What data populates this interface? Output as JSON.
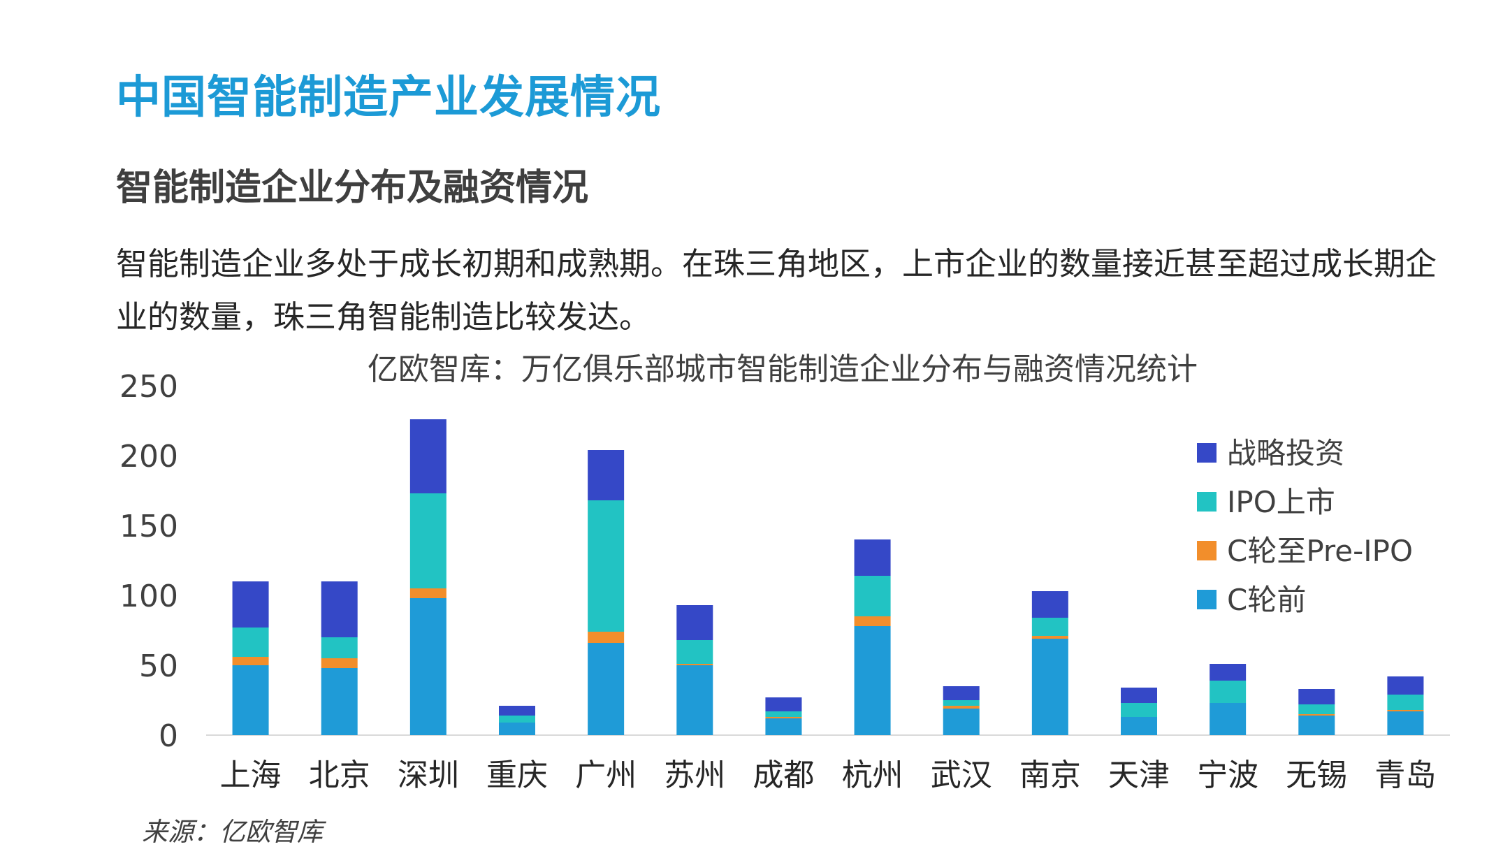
{
  "header": {
    "title": "中国智能制造产业发展情况",
    "subtitle": "智能制造企业分布及融资情况",
    "description": "智能制造企业多处于成长初期和成熟期。在珠三角地区，上市企业的数量接近甚至超过成长期企业的数量，珠三角智能制造比较发达。"
  },
  "source": "来源：亿欧智库",
  "chart_data": {
    "type": "bar",
    "stacked": true,
    "title": "亿欧智库：万亿俱乐部城市智能制造企业分布与融资情况统计",
    "xlabel": "",
    "ylabel": "",
    "ylim": [
      0,
      250
    ],
    "yticks": [
      0,
      50,
      100,
      150,
      200,
      250
    ],
    "grid": false,
    "legend_position": "right",
    "categories": [
      "上海",
      "北京",
      "深圳",
      "重庆",
      "广州",
      "苏州",
      "成都",
      "杭州",
      "武汉",
      "南京",
      "天津",
      "宁波",
      "无锡",
      "青岛"
    ],
    "series": [
      {
        "name": "C轮前",
        "color": "#1f9bd7",
        "values": [
          50,
          48,
          98,
          9,
          66,
          50,
          12,
          78,
          19,
          69,
          13,
          23,
          14,
          17
        ]
      },
      {
        "name": "C轮至Pre-IPO",
        "color": "#f28e2b",
        "values": [
          6,
          7,
          7,
          0,
          8,
          1,
          1,
          7,
          2,
          2,
          0,
          0,
          1,
          1
        ]
      },
      {
        "name": "IPO上市",
        "color": "#22c3c3",
        "values": [
          21,
          15,
          68,
          5,
          94,
          17,
          4,
          29,
          4,
          13,
          10,
          16,
          7,
          11
        ]
      },
      {
        "name": "战略投资",
        "color": "#3548c7",
        "values": [
          33,
          40,
          53,
          7,
          36,
          25,
          10,
          26,
          10,
          19,
          11,
          12,
          11,
          13
        ]
      }
    ]
  }
}
